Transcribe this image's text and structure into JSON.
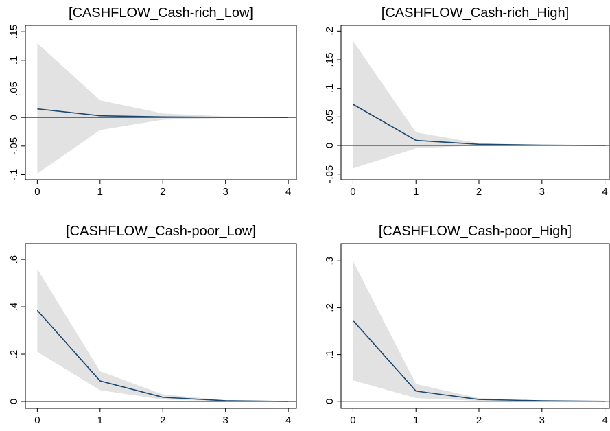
{
  "chart_data": [
    {
      "type": "line",
      "title": "[CASHFLOW_Cash-rich_Low]",
      "x": [
        0,
        1,
        2,
        3,
        4
      ],
      "values": [
        0.015,
        0.003,
        0.001,
        0.0003,
        0
      ],
      "band": {
        "upper": [
          0.13,
          0.03,
          0.007,
          0.002,
          0.0005
        ],
        "lower": [
          -0.098,
          -0.022,
          -0.004,
          -0.001,
          -0.0005
        ]
      },
      "color": "#1a476f",
      "band_color": "#e2e2e2",
      "refline": 0,
      "refline_color": "#d0021b",
      "xlim": [
        -0.19,
        4.13
      ],
      "xticks": [
        0,
        1,
        2,
        3,
        4
      ],
      "ylim": [
        -0.109,
        0.161
      ],
      "yticks": [
        {
          "value": -0.1,
          "label": "-.1"
        },
        {
          "value": -0.05,
          "label": "-.05"
        },
        0,
        {
          "value": 0.05,
          "label": ".05"
        },
        {
          "value": 0.1,
          "label": ".1"
        },
        {
          "value": 0.15,
          "label": ".15"
        }
      ]
    },
    {
      "type": "line",
      "title": "[CASHFLOW_Cash-rich_High]",
      "x": [
        0,
        1,
        2,
        3,
        4
      ],
      "values": [
        0.072,
        0.009,
        0.002,
        0.0005,
        0
      ],
      "band": {
        "upper": [
          0.183,
          0.023,
          0.004,
          0.001,
          0.0003
        ],
        "lower": [
          -0.04,
          -0.005,
          0,
          0,
          0
        ]
      },
      "color": "#1a476f",
      "band_color": "#e2e2e2",
      "refline": 0,
      "refline_color": "#d0021b",
      "xlim": [
        -0.19,
        4.07
      ],
      "xticks": [
        0,
        1,
        2,
        3,
        4
      ],
      "ylim": [
        -0.06,
        0.21
      ],
      "yticks": [
        {
          "value": -0.05,
          "label": "-.05"
        },
        0,
        {
          "value": 0.05,
          "label": ".05"
        },
        {
          "value": 0.1,
          "label": ".1"
        },
        {
          "value": 0.15,
          "label": ".15"
        },
        {
          "value": 0.2,
          "label": ".2"
        }
      ]
    },
    {
      "type": "line",
      "title": "[CASHFLOW_Cash-poor_Low]",
      "x": [
        0,
        1,
        2,
        3,
        4
      ],
      "values": [
        0.385,
        0.087,
        0.018,
        0.003,
        0
      ],
      "band": {
        "upper": [
          0.56,
          0.128,
          0.03,
          0.005,
          0.001
        ],
        "lower": [
          0.21,
          0.048,
          0.008,
          0.001,
          0
        ]
      },
      "color": "#1a476f",
      "band_color": "#e2e2e2",
      "refline": 0,
      "refline_color": "#d0021b",
      "xlim": [
        -0.19,
        4.13
      ],
      "xticks": [
        0,
        1,
        2,
        3,
        4
      ],
      "ylim": [
        -0.029,
        0.667
      ],
      "yticks": [
        0,
        {
          "value": 0.2,
          "label": ".2"
        },
        {
          "value": 0.4,
          "label": ".4"
        },
        {
          "value": 0.6,
          "label": ".6"
        }
      ]
    },
    {
      "type": "line",
      "title": "[CASHFLOW_Cash-poor_High]",
      "x": [
        0,
        1,
        2,
        3,
        4
      ],
      "values": [
        0.173,
        0.022,
        0.004,
        0.001,
        0
      ],
      "band": {
        "upper": [
          0.3,
          0.037,
          0.007,
          0.001,
          0
        ],
        "lower": [
          0.045,
          0.007,
          0.001,
          0,
          0
        ]
      },
      "color": "#1a476f",
      "band_color": "#e2e2e2",
      "refline": 0,
      "refline_color": "#d0021b",
      "xlim": [
        -0.19,
        4.07
      ],
      "xticks": [
        0,
        1,
        2,
        3,
        4
      ],
      "ylim": [
        -0.015,
        0.337
      ],
      "yticks": [
        0,
        {
          "value": 0.1,
          "label": ".1"
        },
        {
          "value": 0.2,
          "label": ".2"
        },
        {
          "value": 0.3,
          "label": ".3"
        }
      ]
    }
  ]
}
